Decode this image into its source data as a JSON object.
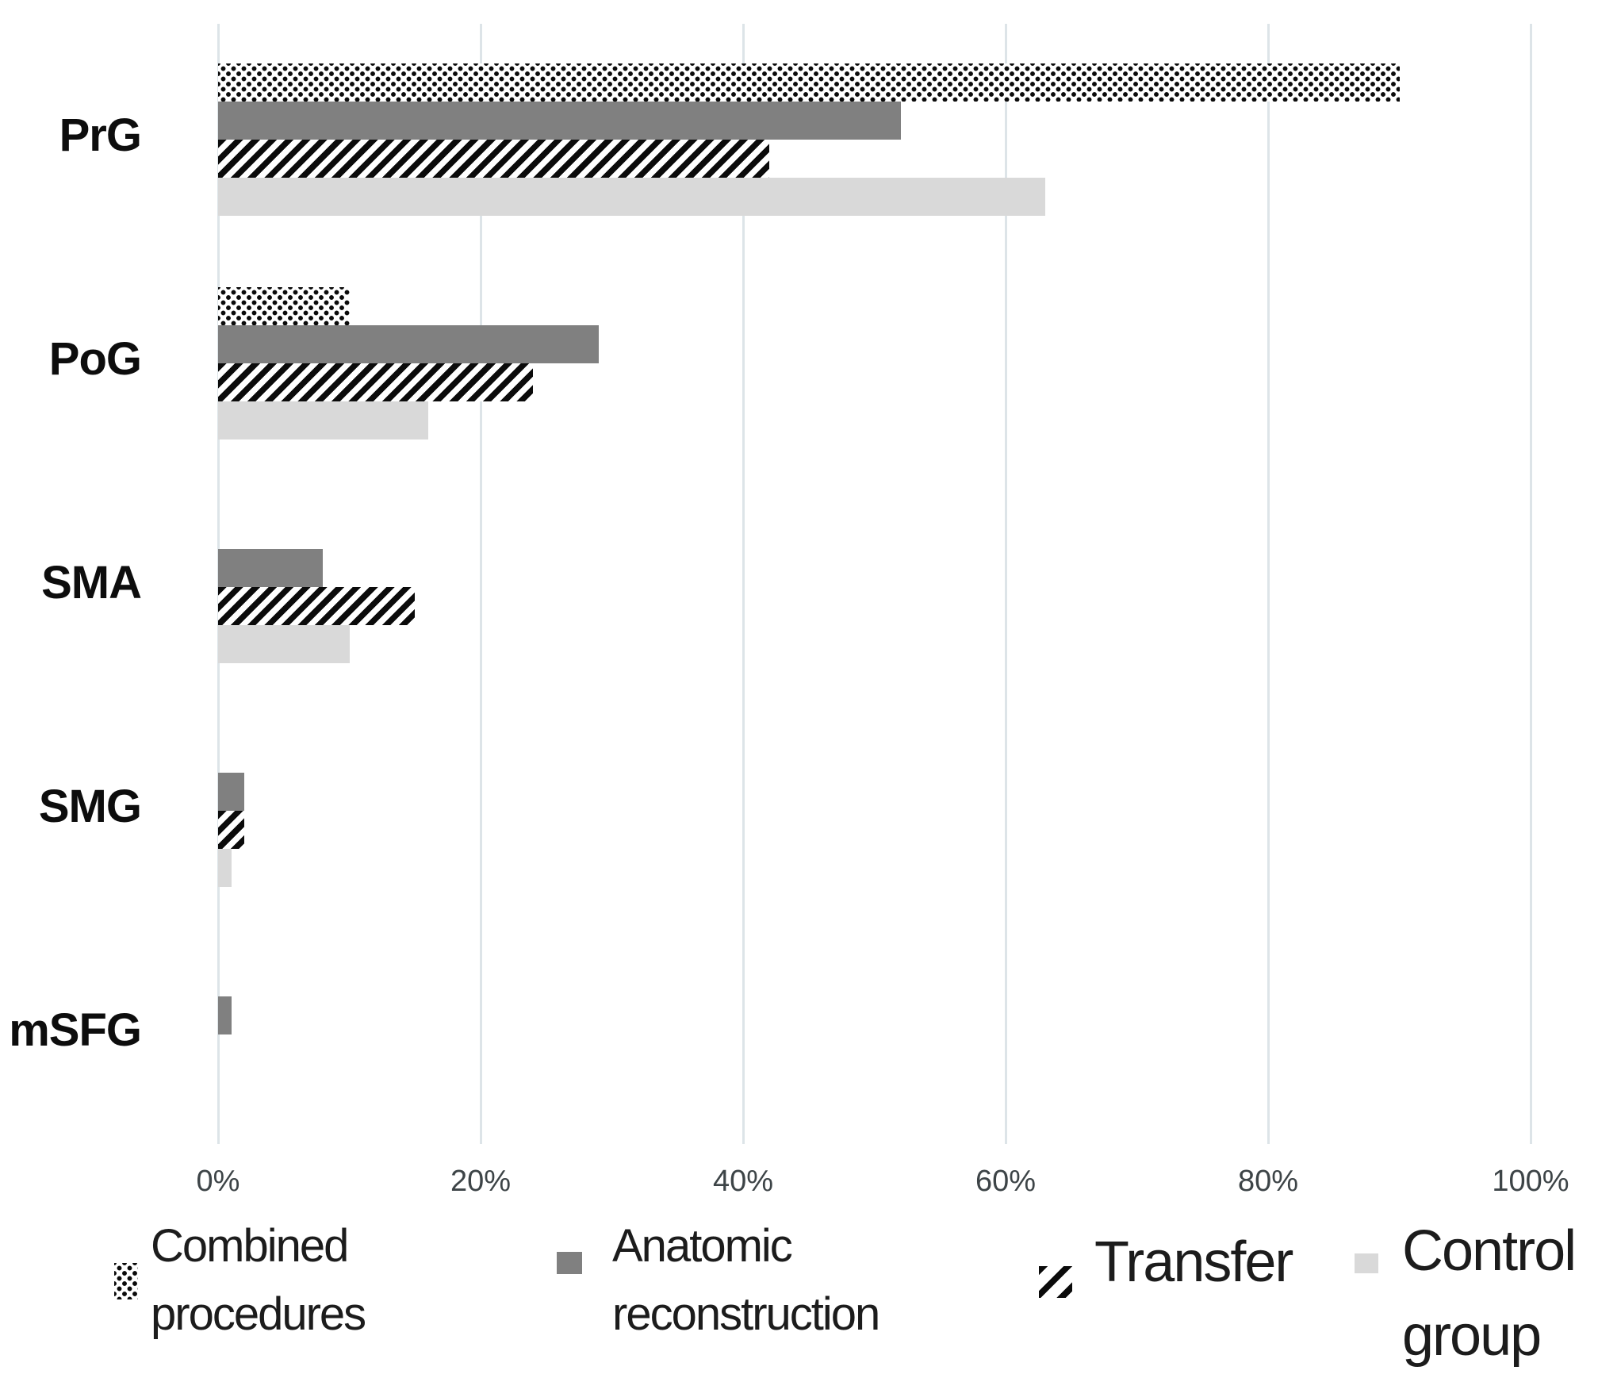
{
  "chart_data": {
    "type": "bar",
    "orientation": "horizontal",
    "title": "",
    "xlabel": "",
    "ylabel": "",
    "xlim": [
      0,
      100
    ],
    "grid": true,
    "legend_position": "bottom",
    "x_ticks": [
      "0%",
      "20%",
      "40%",
      "60%",
      "80%",
      "100%"
    ],
    "x_tick_values": [
      0,
      20,
      40,
      60,
      80,
      100
    ],
    "categories": [
      "PrG",
      "PoG",
      "SMA",
      "SMG",
      "mSFG"
    ],
    "series": [
      {
        "name": "Combined procedures",
        "pattern": "dotted",
        "values": [
          90,
          10,
          0,
          0,
          0
        ]
      },
      {
        "name": "Anatomic reconstruction",
        "pattern": "solid-dark",
        "color": "#808080",
        "values": [
          52,
          29,
          8,
          2,
          1
        ]
      },
      {
        "name": "Transfer",
        "pattern": "striped",
        "values": [
          42,
          24,
          15,
          2,
          0
        ]
      },
      {
        "name": "Control group",
        "pattern": "solid-light",
        "color": "#d9d9d9",
        "values": [
          63,
          16,
          10,
          1,
          0
        ]
      }
    ]
  },
  "colors": {
    "dark_bar": "#808080",
    "light_bar": "#d9d9d9",
    "pattern_ink": "#0b0b0b",
    "gridline": "#dde4e8",
    "tick_text": "#3d4447",
    "label_text": "#0d0d0d",
    "background": "#ffffff"
  }
}
